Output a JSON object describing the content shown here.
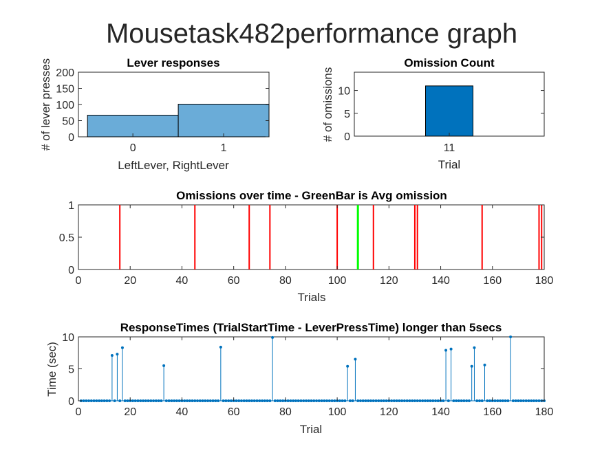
{
  "suptitle": "Mousetask482performance graph",
  "chart_data": [
    {
      "id": "lever",
      "type": "bar",
      "title": "Lever responses",
      "xlabel": "LeftLever, RightLever",
      "ylabel": "# of lever presses",
      "categories": [
        "0",
        "1"
      ],
      "values": [
        67,
        101
      ],
      "ylim": [
        0,
        200
      ],
      "yticks": [
        0,
        50,
        100,
        150,
        200
      ],
      "colors": {
        "bar": "#6aacd8",
        "edge": "#000000"
      }
    },
    {
      "id": "omission-count",
      "type": "bar",
      "title": "Omission Count",
      "xlabel": "Trial",
      "ylabel": "# of omissions",
      "categories": [
        "11"
      ],
      "values": [
        11
      ],
      "ylim": [
        0,
        14
      ],
      "yticks": [
        0,
        5,
        10
      ],
      "colors": {
        "bar": "#0072bd",
        "edge": "#000000"
      }
    },
    {
      "id": "omissions-time",
      "type": "line",
      "title": "Omissions over time - GreenBar is Avg omission",
      "xlabel": "Trials",
      "ylabel": "",
      "omission_trials": [
        16,
        45,
        66,
        74,
        100,
        114,
        130,
        131,
        156,
        178,
        179
      ],
      "average_trial": 108,
      "xlim": [
        0,
        180
      ],
      "ylim": [
        0,
        1
      ],
      "xticks": [
        0,
        20,
        40,
        60,
        80,
        100,
        120,
        140,
        160,
        180
      ],
      "yticks": [
        0,
        0.5,
        1
      ],
      "colors": {
        "omission": "#ff0000",
        "average": "#00ff00"
      }
    },
    {
      "id": "response-times",
      "type": "scatter",
      "title": "ResponseTimes (TrialStartTime - LeverPressTime) longer than 5secs",
      "xlabel": "Trial",
      "ylabel": "Time (sec)",
      "xlim": [
        0,
        180
      ],
      "ylim": [
        0,
        10
      ],
      "xticks": [
        0,
        20,
        40,
        60,
        80,
        100,
        120,
        140,
        160,
        180
      ],
      "yticks": [
        0,
        5,
        10
      ],
      "n_trials": 180,
      "nonzero": [
        [
          13,
          7.1
        ],
        [
          15,
          7.3
        ],
        [
          17,
          8.3
        ],
        [
          33,
          5.5
        ],
        [
          55,
          8.4
        ],
        [
          75,
          9.9
        ],
        [
          104,
          5.4
        ],
        [
          107,
          6.5
        ],
        [
          142,
          7.9
        ],
        [
          144,
          8.1
        ],
        [
          152,
          5.4
        ],
        [
          153,
          8.3
        ],
        [
          157,
          5.6
        ],
        [
          167,
          10.0
        ]
      ],
      "colors": {
        "stem": "#0072bd"
      }
    }
  ]
}
